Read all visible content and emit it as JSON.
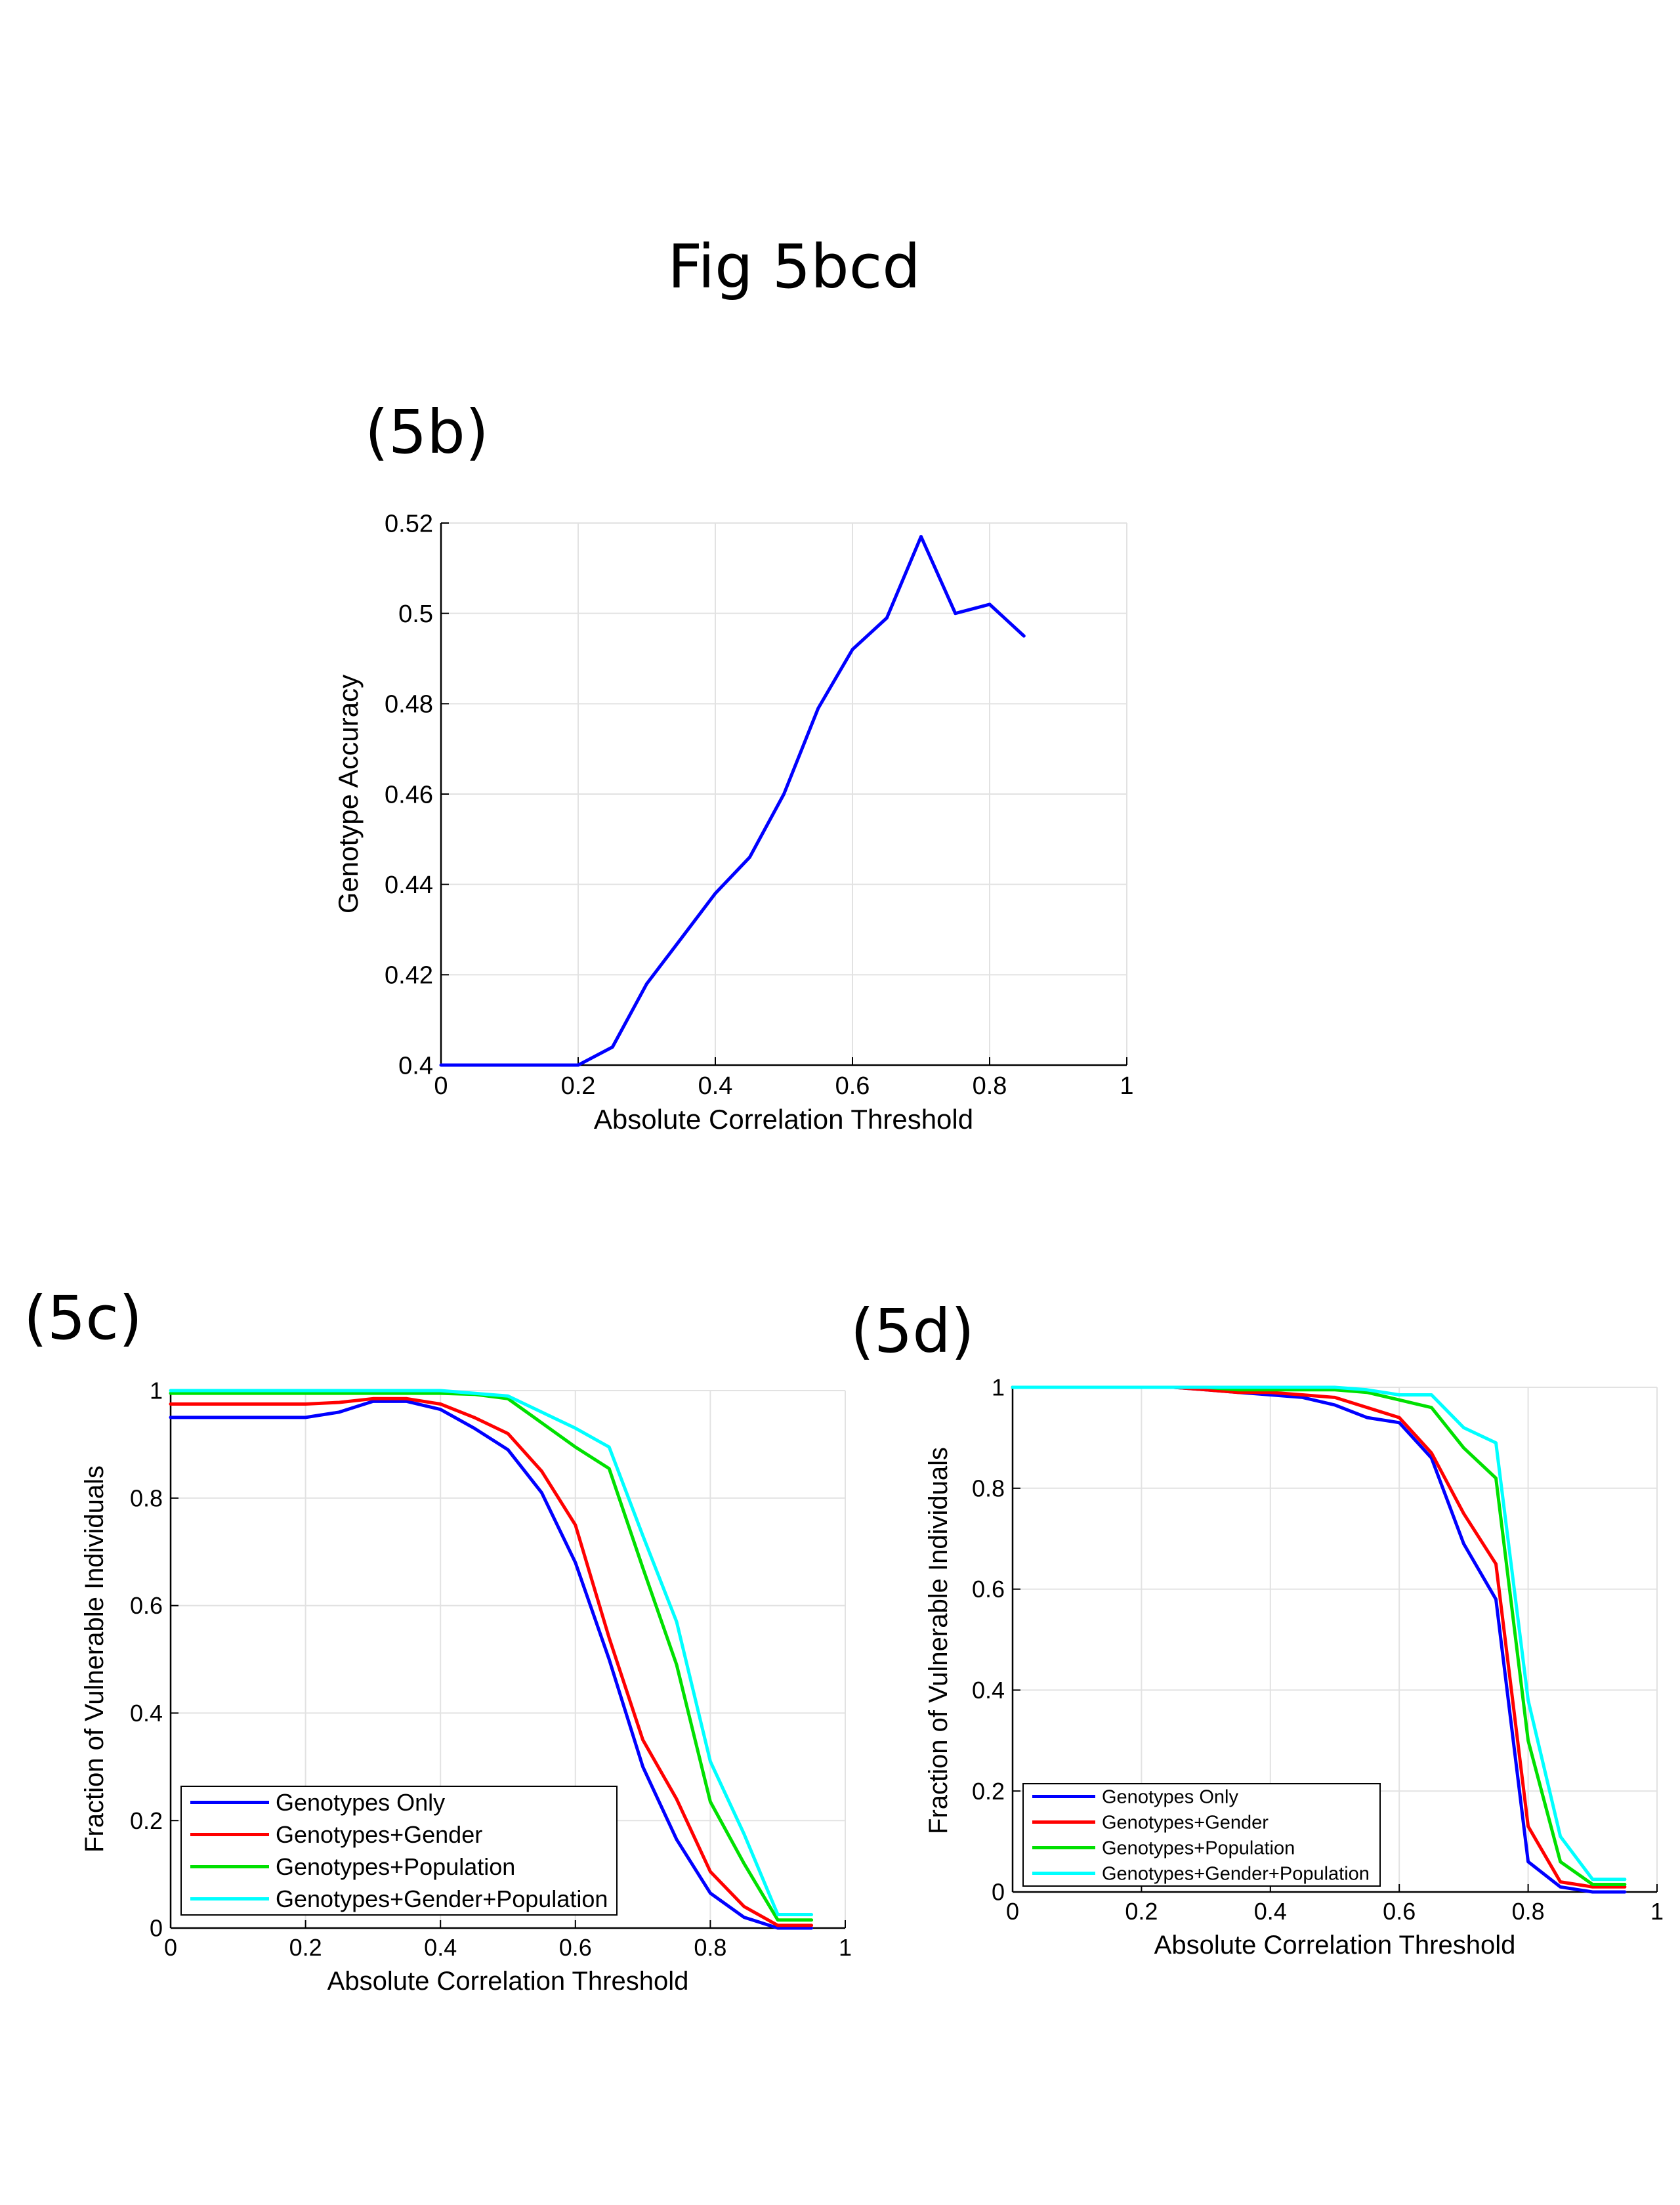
{
  "page_title": "Fig 5bcd",
  "chart_data": [
    {
      "id": "5b",
      "panel_label": "(5b)",
      "type": "line",
      "xlabel": "Absolute Correlation Threshold",
      "ylabel": "Genotype Accuracy",
      "xlim": [
        0,
        1
      ],
      "ylim": [
        0.4,
        0.52
      ],
      "xticks": [
        0,
        0.2,
        0.4,
        0.6,
        0.8,
        1
      ],
      "yticks": [
        0.4,
        0.42,
        0.44,
        0.46,
        0.48,
        0.5,
        0.52
      ],
      "grid": true,
      "legend": null,
      "series": [
        {
          "color": "#0000ff",
          "x": [
            0,
            0.05,
            0.1,
            0.15,
            0.2,
            0.25,
            0.3,
            0.35,
            0.4,
            0.45,
            0.5,
            0.55,
            0.6,
            0.65,
            0.7,
            0.75,
            0.8,
            0.85
          ],
          "y": [
            0.4,
            0.4,
            0.4,
            0.4,
            0.4,
            0.404,
            0.418,
            0.428,
            0.438,
            0.446,
            0.46,
            0.479,
            0.492,
            0.499,
            0.517,
            0.5,
            0.502,
            0.495
          ]
        }
      ]
    },
    {
      "id": "5c",
      "panel_label": "(5c)",
      "type": "line",
      "xlabel": "Absolute Correlation Threshold",
      "ylabel": "Fraction of Vulnerable Individuals",
      "xlim": [
        0,
        1
      ],
      "ylim": [
        0,
        1
      ],
      "xticks": [
        0,
        0.2,
        0.4,
        0.6,
        0.8,
        1
      ],
      "yticks": [
        0,
        0.2,
        0.4,
        0.6,
        0.8,
        1
      ],
      "grid": true,
      "legend": "bottom-left",
      "series": [
        {
          "name": "Genotypes Only",
          "color": "#0000ff",
          "x": [
            0,
            0.05,
            0.1,
            0.15,
            0.2,
            0.25,
            0.3,
            0.35,
            0.4,
            0.45,
            0.5,
            0.55,
            0.6,
            0.65,
            0.7,
            0.75,
            0.8,
            0.85,
            0.9,
            0.95
          ],
          "y": [
            0.95,
            0.95,
            0.95,
            0.95,
            0.95,
            0.96,
            0.98,
            0.98,
            0.965,
            0.93,
            0.89,
            0.81,
            0.68,
            0.5,
            0.3,
            0.165,
            0.065,
            0.02,
            0,
            0
          ]
        },
        {
          "name": "Genotypes+Gender",
          "color": "#ff0000",
          "x": [
            0,
            0.05,
            0.1,
            0.15,
            0.2,
            0.25,
            0.3,
            0.35,
            0.4,
            0.45,
            0.5,
            0.55,
            0.6,
            0.65,
            0.7,
            0.75,
            0.8,
            0.85,
            0.9,
            0.95
          ],
          "y": [
            0.975,
            0.975,
            0.975,
            0.975,
            0.975,
            0.978,
            0.985,
            0.985,
            0.975,
            0.95,
            0.92,
            0.85,
            0.75,
            0.54,
            0.35,
            0.24,
            0.105,
            0.04,
            0.005,
            0.005
          ]
        },
        {
          "name": "Genotypes+Population",
          "color": "#00e000",
          "x": [
            0,
            0.05,
            0.1,
            0.15,
            0.2,
            0.25,
            0.3,
            0.35,
            0.4,
            0.45,
            0.5,
            0.55,
            0.6,
            0.65,
            0.7,
            0.75,
            0.8,
            0.85,
            0.9,
            0.95
          ],
          "y": [
            0.995,
            0.995,
            0.995,
            0.995,
            0.995,
            0.995,
            0.995,
            0.995,
            0.995,
            0.993,
            0.985,
            0.94,
            0.895,
            0.855,
            0.67,
            0.49,
            0.235,
            0.12,
            0.015,
            0.015
          ]
        },
        {
          "name": "Genotypes+Gender+Population",
          "color": "#00ffff",
          "x": [
            0,
            0.05,
            0.1,
            0.15,
            0.2,
            0.25,
            0.3,
            0.35,
            0.4,
            0.45,
            0.5,
            0.55,
            0.6,
            0.65,
            0.7,
            0.75,
            0.8,
            0.85,
            0.9,
            0.95
          ],
          "y": [
            1,
            1,
            1,
            1,
            1,
            1,
            1,
            1,
            1,
            0.995,
            0.99,
            0.96,
            0.93,
            0.895,
            0.73,
            0.57,
            0.31,
            0.175,
            0.025,
            0.025
          ]
        }
      ]
    },
    {
      "id": "5d",
      "panel_label": "(5d)",
      "type": "line",
      "xlabel": "Absolute Correlation Threshold",
      "ylabel": "Fraction of Vulnerable Individuals",
      "xlim": [
        0,
        1
      ],
      "ylim": [
        0,
        1
      ],
      "xticks": [
        0,
        0.2,
        0.4,
        0.6,
        0.8,
        1
      ],
      "yticks": [
        0,
        0.2,
        0.4,
        0.6,
        0.8,
        1
      ],
      "grid": true,
      "legend": "bottom-left",
      "series": [
        {
          "name": "Genotypes Only",
          "color": "#0000ff",
          "x": [
            0,
            0.05,
            0.1,
            0.15,
            0.2,
            0.25,
            0.3,
            0.35,
            0.4,
            0.45,
            0.5,
            0.55,
            0.6,
            0.65,
            0.7,
            0.75,
            0.8,
            0.85,
            0.9,
            0.95
          ],
          "y": [
            1,
            1,
            1,
            1,
            1,
            1,
            0.995,
            0.99,
            0.985,
            0.98,
            0.965,
            0.94,
            0.93,
            0.86,
            0.69,
            0.58,
            0.06,
            0.01,
            0,
            0
          ]
        },
        {
          "name": "Genotypes+Gender",
          "color": "#ff0000",
          "x": [
            0,
            0.05,
            0.1,
            0.15,
            0.2,
            0.25,
            0.3,
            0.35,
            0.4,
            0.45,
            0.5,
            0.55,
            0.6,
            0.65,
            0.7,
            0.75,
            0.8,
            0.85,
            0.9,
            0.95
          ],
          "y": [
            1,
            1,
            1,
            1,
            1,
            1,
            0.995,
            0.99,
            0.99,
            0.985,
            0.98,
            0.96,
            0.94,
            0.87,
            0.75,
            0.65,
            0.13,
            0.02,
            0.01,
            0.01
          ]
        },
        {
          "name": "Genotypes+Population",
          "color": "#00e000",
          "x": [
            0,
            0.05,
            0.1,
            0.15,
            0.2,
            0.25,
            0.3,
            0.35,
            0.4,
            0.45,
            0.5,
            0.55,
            0.6,
            0.65,
            0.7,
            0.75,
            0.8,
            0.85,
            0.9,
            0.95
          ],
          "y": [
            1,
            1,
            1,
            1,
            1,
            1,
            1,
            0.995,
            0.995,
            0.995,
            0.995,
            0.99,
            0.975,
            0.96,
            0.88,
            0.82,
            0.3,
            0.06,
            0.015,
            0.015
          ]
        },
        {
          "name": "Genotypes+Gender+Population",
          "color": "#00ffff",
          "x": [
            0,
            0.05,
            0.1,
            0.15,
            0.2,
            0.25,
            0.3,
            0.35,
            0.4,
            0.45,
            0.5,
            0.55,
            0.6,
            0.65,
            0.7,
            0.75,
            0.8,
            0.85,
            0.9,
            0.95
          ],
          "y": [
            1,
            1,
            1,
            1,
            1,
            1,
            1,
            1,
            1,
            1,
            1,
            0.995,
            0.985,
            0.985,
            0.92,
            0.89,
            0.38,
            0.11,
            0.025,
            0.025
          ]
        }
      ]
    }
  ]
}
